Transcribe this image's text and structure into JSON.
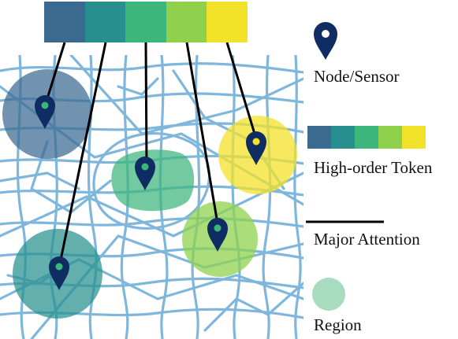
{
  "legend": {
    "node": "Node/Sensor",
    "token": "High-order Token",
    "attention": "Major Attention",
    "region": "Region"
  },
  "colors": {
    "token_palette": [
      "#3b6a91",
      "#27908f",
      "#3db67b",
      "#8fd14d",
      "#f3e22a"
    ],
    "roads": "#7fb6dc",
    "pin": "#0f2d63",
    "attention_line": "#000000",
    "region_legend": "#a7dcbf"
  },
  "icons": {
    "node": "map-pin-icon",
    "region": "region-circle-icon"
  },
  "diagram": {
    "top_token_count": 5,
    "regions": [
      {
        "id": "region-dark-blue",
        "color_index": 0,
        "shape": "circle"
      },
      {
        "id": "region-teal-bottom",
        "color_index": 1,
        "shape": "circle"
      },
      {
        "id": "region-green-center",
        "color_index": 2,
        "shape": "blob"
      },
      {
        "id": "region-light-green",
        "color_index": 3,
        "shape": "circle"
      },
      {
        "id": "region-yellow",
        "color_index": 4,
        "shape": "circle"
      }
    ],
    "attention_links": [
      {
        "token": 0,
        "region": "region-dark-blue"
      },
      {
        "token": 1,
        "region": "region-teal-bottom"
      },
      {
        "token": 2,
        "region": "region-green-center"
      },
      {
        "token": 3,
        "region": "region-light-green"
      },
      {
        "token": 4,
        "region": "region-yellow"
      }
    ]
  }
}
